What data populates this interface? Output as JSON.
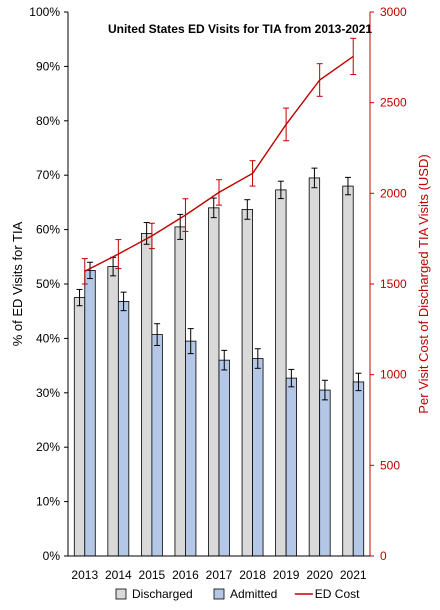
{
  "chart_data": {
    "type": "bar",
    "title": "United States ED Visits for TIA from 2013-2021",
    "categories": [
      "2013",
      "2014",
      "2015",
      "2016",
      "2017",
      "2018",
      "2019",
      "2020",
      "2021"
    ],
    "ylabel": "% of ED Visits for TIA",
    "y2label": "Per Visit Cost of Discharged TIA Visits (USD)",
    "ylim": [
      0,
      100
    ],
    "y2lim": [
      0,
      3000
    ],
    "y_ticks": [
      "0%",
      "10%",
      "20%",
      "30%",
      "40%",
      "50%",
      "60%",
      "70%",
      "80%",
      "90%",
      "100%"
    ],
    "y2_ticks": [
      "0",
      "500",
      "1000",
      "1500",
      "2000",
      "2500",
      "3000"
    ],
    "grid": false,
    "legend_position": "bottom",
    "series": [
      {
        "name": "Discharged",
        "kind": "bar",
        "axis": "left",
        "color": "#d9d9d9",
        "values": [
          47.5,
          53.2,
          59.3,
          60.5,
          64.0,
          63.7,
          67.3,
          69.5,
          68.0
        ],
        "error": [
          1.5,
          1.7,
          2.0,
          2.3,
          1.8,
          1.8,
          1.6,
          1.8,
          1.6
        ]
      },
      {
        "name": "Admitted",
        "kind": "bar",
        "axis": "left",
        "color": "#b4c7e7",
        "values": [
          52.5,
          46.8,
          40.7,
          39.5,
          36.0,
          36.3,
          32.7,
          30.5,
          32.0
        ],
        "error": [
          1.5,
          1.7,
          2.0,
          2.3,
          1.8,
          1.8,
          1.6,
          1.8,
          1.6
        ]
      },
      {
        "name": "ED Cost",
        "kind": "line",
        "axis": "right",
        "color": "#c00000",
        "values": [
          1570,
          1665,
          1765,
          1880,
          2005,
          2110,
          2380,
          2625,
          2755
        ],
        "error": [
          70,
          80,
          70,
          90,
          70,
          70,
          90,
          90,
          100
        ]
      }
    ]
  }
}
